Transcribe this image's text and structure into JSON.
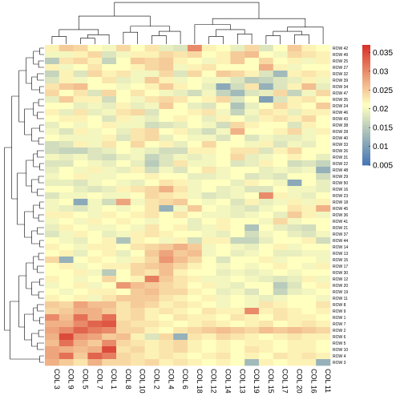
{
  "chart_data": {
    "type": "heatmap",
    "title": "",
    "columns": [
      "COL 3",
      "COL 9",
      "COL 5",
      "COL 7",
      "COL 1",
      "COL 8",
      "COL 10",
      "COL 2",
      "COL 4",
      "COL 6",
      "COL 18",
      "COL 12",
      "COL 14",
      "COL 13",
      "COL 19",
      "COL 15",
      "COL 17",
      "COL 20",
      "COL 16",
      "COL 11"
    ],
    "rows": [
      "ROW 42",
      "ROW 49",
      "ROW 25",
      "ROW 27",
      "ROW 32",
      "ROW 39",
      "ROW 34",
      "ROW 47",
      "ROW 35",
      "ROW 24",
      "ROW 46",
      "ROW 43",
      "ROW 38",
      "ROW 28",
      "ROW 40",
      "ROW 33",
      "ROW 26",
      "ROW 31",
      "ROW 22",
      "ROW 48",
      "ROW 29",
      "ROW 50",
      "ROW 16",
      "ROW 23",
      "ROW 18",
      "ROW 45",
      "ROW 36",
      "ROW 41",
      "ROW 21",
      "ROW 37",
      "ROW 44",
      "ROW 14",
      "ROW 13",
      "ROW 15",
      "ROW 17",
      "ROW 30",
      "ROW 12",
      "ROW 20",
      "ROW 19",
      "ROW 11",
      "ROW 8",
      "ROW 9",
      "ROW 1",
      "ROW 7",
      "ROW 2",
      "ROW 6",
      "ROW 5",
      "ROW 10",
      "ROW 4",
      "ROW 3"
    ],
    "values": [
      [
        0.022,
        0.025,
        0.024,
        0.021,
        0.02,
        0.024,
        0.021,
        0.023,
        0.019,
        0.018,
        0.03,
        0.022,
        0.021,
        0.019,
        0.024,
        0.018,
        0.021,
        0.025,
        0.022,
        0.021
      ],
      [
        0.02,
        0.02,
        0.022,
        0.024,
        0.018,
        0.02,
        0.022,
        0.022,
        0.024,
        0.023,
        0.024,
        0.021,
        0.022,
        0.025,
        0.026,
        0.021,
        0.02,
        0.024,
        0.023,
        0.022
      ],
      [
        0.015,
        0.023,
        0.024,
        0.022,
        0.016,
        0.021,
        0.025,
        0.024,
        0.025,
        0.022,
        0.021,
        0.02,
        0.022,
        0.025,
        0.021,
        0.024,
        0.021,
        0.022,
        0.02,
        0.022
      ],
      [
        0.022,
        0.02,
        0.021,
        0.023,
        0.021,
        0.021,
        0.022,
        0.024,
        0.025,
        0.02,
        0.022,
        0.023,
        0.021,
        0.021,
        0.021,
        0.027,
        0.022,
        0.02,
        0.021,
        0.021
      ],
      [
        0.016,
        0.022,
        0.018,
        0.024,
        0.022,
        0.023,
        0.02,
        0.02,
        0.024,
        0.018,
        0.024,
        0.021,
        0.025,
        0.024,
        0.022,
        0.018,
        0.013,
        0.022,
        0.023,
        0.022
      ],
      [
        0.018,
        0.022,
        0.02,
        0.021,
        0.023,
        0.019,
        0.02,
        0.025,
        0.022,
        0.02,
        0.021,
        0.02,
        0.02,
        0.018,
        0.015,
        0.016,
        0.018,
        0.019,
        0.022,
        0.02
      ],
      [
        0.023,
        0.025,
        0.026,
        0.021,
        0.021,
        0.02,
        0.021,
        0.022,
        0.025,
        0.022,
        0.021,
        0.019,
        0.011,
        0.017,
        0.023,
        0.012,
        0.018,
        0.022,
        0.026,
        0.019
      ],
      [
        0.024,
        0.021,
        0.023,
        0.018,
        0.024,
        0.021,
        0.023,
        0.021,
        0.02,
        0.019,
        0.017,
        0.02,
        0.016,
        0.013,
        0.018,
        0.019,
        0.024,
        0.016,
        0.02,
        0.024
      ],
      [
        0.019,
        0.025,
        0.022,
        0.022,
        0.017,
        0.021,
        0.02,
        0.023,
        0.024,
        0.023,
        0.021,
        0.022,
        0.024,
        0.018,
        0.021,
        0.01,
        0.018,
        0.022,
        0.023,
        0.021
      ],
      [
        0.021,
        0.021,
        0.019,
        0.02,
        0.019,
        0.022,
        0.019,
        0.02,
        0.025,
        0.021,
        0.019,
        0.018,
        0.021,
        0.014,
        0.019,
        0.021,
        0.024,
        0.022,
        0.021,
        0.025
      ],
      [
        0.022,
        0.019,
        0.023,
        0.019,
        0.02,
        0.023,
        0.024,
        0.018,
        0.021,
        0.021,
        0.022,
        0.023,
        0.02,
        0.016,
        0.02,
        0.023,
        0.022,
        0.019,
        0.022,
        0.022
      ],
      [
        0.021,
        0.022,
        0.022,
        0.021,
        0.018,
        0.022,
        0.02,
        0.019,
        0.021,
        0.022,
        0.021,
        0.019,
        0.022,
        0.021,
        0.019,
        0.022,
        0.023,
        0.022,
        0.024,
        0.021
      ],
      [
        0.019,
        0.021,
        0.02,
        0.021,
        0.022,
        0.02,
        0.02,
        0.017,
        0.018,
        0.019,
        0.021,
        0.02,
        0.017,
        0.024,
        0.022,
        0.021,
        0.021,
        0.018,
        0.022,
        0.021
      ],
      [
        0.02,
        0.018,
        0.022,
        0.02,
        0.021,
        0.019,
        0.023,
        0.024,
        0.021,
        0.022,
        0.019,
        0.017,
        0.02,
        0.027,
        0.021,
        0.021,
        0.022,
        0.024,
        0.02,
        0.022
      ],
      [
        0.021,
        0.02,
        0.02,
        0.02,
        0.022,
        0.018,
        0.023,
        0.024,
        0.019,
        0.021,
        0.02,
        0.02,
        0.018,
        0.021,
        0.018,
        0.02,
        0.019,
        0.019,
        0.02,
        0.021
      ],
      [
        0.017,
        0.018,
        0.022,
        0.02,
        0.023,
        0.021,
        0.024,
        0.021,
        0.022,
        0.019,
        0.021,
        0.024,
        0.021,
        0.021,
        0.02,
        0.022,
        0.018,
        0.02,
        0.019,
        0.021
      ],
      [
        0.017,
        0.016,
        0.016,
        0.018,
        0.019,
        0.021,
        0.02,
        0.019,
        0.017,
        0.017,
        0.022,
        0.022,
        0.021,
        0.023,
        0.023,
        0.018,
        0.022,
        0.024,
        0.021,
        0.021
      ],
      [
        0.02,
        0.019,
        0.02,
        0.018,
        0.017,
        0.019,
        0.02,
        0.016,
        0.018,
        0.02,
        0.019,
        0.02,
        0.021,
        0.024,
        0.019,
        0.02,
        0.021,
        0.022,
        0.021,
        0.019
      ],
      [
        0.018,
        0.018,
        0.021,
        0.02,
        0.019,
        0.021,
        0.019,
        0.015,
        0.018,
        0.023,
        0.02,
        0.02,
        0.021,
        0.018,
        0.019,
        0.022,
        0.021,
        0.017,
        0.018,
        0.016
      ],
      [
        0.019,
        0.021,
        0.02,
        0.022,
        0.02,
        0.019,
        0.022,
        0.017,
        0.02,
        0.018,
        0.021,
        0.023,
        0.02,
        0.021,
        0.021,
        0.019,
        0.02,
        0.019,
        0.02,
        0.012
      ],
      [
        0.02,
        0.021,
        0.022,
        0.02,
        0.02,
        0.021,
        0.021,
        0.022,
        0.021,
        0.021,
        0.019,
        0.019,
        0.02,
        0.021,
        0.018,
        0.019,
        0.018,
        0.021,
        0.021,
        0.017
      ],
      [
        0.019,
        0.019,
        0.018,
        0.02,
        0.021,
        0.02,
        0.019,
        0.021,
        0.023,
        0.022,
        0.02,
        0.021,
        0.021,
        0.019,
        0.022,
        0.021,
        0.02,
        0.011,
        0.021,
        0.019
      ],
      [
        0.021,
        0.021,
        0.019,
        0.018,
        0.019,
        0.022,
        0.023,
        0.024,
        0.027,
        0.023,
        0.02,
        0.021,
        0.019,
        0.02,
        0.018,
        0.018,
        0.021,
        0.02,
        0.02,
        0.019
      ],
      [
        0.018,
        0.02,
        0.02,
        0.021,
        0.02,
        0.02,
        0.021,
        0.024,
        0.023,
        0.022,
        0.02,
        0.018,
        0.019,
        0.02,
        0.021,
        0.03,
        0.022,
        0.02,
        0.019,
        0.021
      ],
      [
        0.02,
        0.021,
        0.011,
        0.02,
        0.017,
        0.028,
        0.02,
        0.023,
        0.024,
        0.025,
        0.021,
        0.02,
        0.021,
        0.018,
        0.022,
        0.019,
        0.02,
        0.022,
        0.02,
        0.022
      ],
      [
        0.02,
        0.019,
        0.018,
        0.02,
        0.021,
        0.02,
        0.021,
        0.023,
        0.012,
        0.02,
        0.025,
        0.021,
        0.02,
        0.019,
        0.018,
        0.02,
        0.021,
        0.023,
        0.022,
        0.027
      ],
      [
        0.022,
        0.022,
        0.021,
        0.02,
        0.022,
        0.021,
        0.022,
        0.023,
        0.021,
        0.023,
        0.021,
        0.02,
        0.02,
        0.019,
        0.02,
        0.021,
        0.019,
        0.025,
        0.022,
        0.02
      ],
      [
        0.02,
        0.021,
        0.02,
        0.022,
        0.021,
        0.022,
        0.021,
        0.02,
        0.021,
        0.021,
        0.019,
        0.021,
        0.022,
        0.021,
        0.021,
        0.02,
        0.024,
        0.02,
        0.021,
        0.021
      ],
      [
        0.019,
        0.022,
        0.021,
        0.02,
        0.02,
        0.021,
        0.02,
        0.023,
        0.021,
        0.022,
        0.019,
        0.02,
        0.022,
        0.021,
        0.014,
        0.021,
        0.019,
        0.018,
        0.017,
        0.021
      ],
      [
        0.018,
        0.02,
        0.022,
        0.021,
        0.019,
        0.02,
        0.022,
        0.023,
        0.022,
        0.021,
        0.021,
        0.02,
        0.019,
        0.021,
        0.017,
        0.02,
        0.021,
        0.019,
        0.018,
        0.02
      ],
      [
        0.021,
        0.02,
        0.019,
        0.021,
        0.022,
        0.014,
        0.022,
        0.021,
        0.02,
        0.022,
        0.017,
        0.022,
        0.022,
        0.016,
        0.016,
        0.019,
        0.021,
        0.021,
        0.022,
        0.017
      ],
      [
        0.022,
        0.021,
        0.02,
        0.022,
        0.022,
        0.021,
        0.023,
        0.024,
        0.025,
        0.027,
        0.025,
        0.02,
        0.021,
        0.02,
        0.019,
        0.021,
        0.022,
        0.02,
        0.021,
        0.021
      ],
      [
        0.021,
        0.022,
        0.019,
        0.021,
        0.022,
        0.019,
        0.021,
        0.025,
        0.028,
        0.025,
        0.026,
        0.02,
        0.021,
        0.019,
        0.02,
        0.021,
        0.019,
        0.019,
        0.02,
        0.02
      ],
      [
        0.024,
        0.012,
        0.021,
        0.022,
        0.021,
        0.02,
        0.022,
        0.024,
        0.029,
        0.026,
        0.024,
        0.021,
        0.018,
        0.021,
        0.021,
        0.022,
        0.02,
        0.021,
        0.021,
        0.02
      ],
      [
        0.021,
        0.022,
        0.02,
        0.021,
        0.022,
        0.022,
        0.024,
        0.025,
        0.026,
        0.024,
        0.022,
        0.021,
        0.02,
        0.021,
        0.02,
        0.021,
        0.022,
        0.021,
        0.02,
        0.022
      ],
      [
        0.021,
        0.021,
        0.022,
        0.02,
        0.015,
        0.021,
        0.024,
        0.023,
        0.026,
        0.022,
        0.021,
        0.021,
        0.019,
        0.02,
        0.019,
        0.02,
        0.021,
        0.02,
        0.021,
        0.021
      ],
      [
        0.022,
        0.021,
        0.02,
        0.021,
        0.024,
        0.021,
        0.022,
        0.031,
        0.025,
        0.023,
        0.022,
        0.02,
        0.02,
        0.021,
        0.02,
        0.019,
        0.018,
        0.019,
        0.022,
        0.02
      ],
      [
        0.02,
        0.021,
        0.022,
        0.02,
        0.021,
        0.029,
        0.026,
        0.025,
        0.024,
        0.023,
        0.021,
        0.022,
        0.02,
        0.019,
        0.021,
        0.021,
        0.015,
        0.018,
        0.021,
        0.022
      ],
      [
        0.021,
        0.02,
        0.021,
        0.022,
        0.022,
        0.021,
        0.025,
        0.026,
        0.024,
        0.024,
        0.022,
        0.021,
        0.019,
        0.02,
        0.018,
        0.021,
        0.016,
        0.019,
        0.02,
        0.021
      ],
      [
        0.022,
        0.021,
        0.022,
        0.02,
        0.023,
        0.025,
        0.025,
        0.025,
        0.023,
        0.022,
        0.021,
        0.022,
        0.02,
        0.021,
        0.02,
        0.019,
        0.02,
        0.021,
        0.021,
        0.02
      ],
      [
        0.025,
        0.024,
        0.028,
        0.026,
        0.026,
        0.023,
        0.025,
        0.024,
        0.022,
        0.023,
        0.022,
        0.021,
        0.02,
        0.021,
        0.02,
        0.023,
        0.022,
        0.021,
        0.021,
        0.023
      ],
      [
        0.024,
        0.025,
        0.027,
        0.027,
        0.025,
        0.023,
        0.024,
        0.022,
        0.023,
        0.022,
        0.021,
        0.023,
        0.022,
        0.022,
        0.03,
        0.022,
        0.023,
        0.022,
        0.021,
        0.022
      ],
      [
        0.03,
        0.026,
        0.032,
        0.027,
        0.032,
        0.023,
        0.024,
        0.022,
        0.021,
        0.023,
        0.022,
        0.022,
        0.021,
        0.023,
        0.022,
        0.021,
        0.023,
        0.022,
        0.022,
        0.021
      ],
      [
        0.027,
        0.027,
        0.03,
        0.033,
        0.034,
        0.024,
        0.023,
        0.023,
        0.022,
        0.021,
        0.022,
        0.023,
        0.022,
        0.021,
        0.022,
        0.023,
        0.021,
        0.022,
        0.023,
        0.022
      ],
      [
        0.028,
        0.03,
        0.033,
        0.031,
        0.03,
        0.024,
        0.024,
        0.022,
        0.021,
        0.023,
        0.024,
        0.025,
        0.026,
        0.025,
        0.024,
        0.026,
        0.025,
        0.026,
        0.025,
        0.024
      ],
      [
        0.027,
        0.035,
        0.029,
        0.028,
        0.025,
        0.026,
        0.022,
        0.018,
        0.024,
        0.012,
        0.023,
        0.022,
        0.024,
        0.023,
        0.022,
        0.021,
        0.022,
        0.023,
        0.022,
        0.022
      ],
      [
        0.026,
        0.032,
        0.027,
        0.025,
        0.03,
        0.024,
        0.023,
        0.022,
        0.023,
        0.024,
        0.022,
        0.021,
        0.022,
        0.021,
        0.022,
        0.022,
        0.021,
        0.022,
        0.022,
        0.021
      ],
      [
        0.028,
        0.027,
        0.026,
        0.027,
        0.035,
        0.023,
        0.024,
        0.022,
        0.023,
        0.024,
        0.022,
        0.021,
        0.022,
        0.021,
        0.023,
        0.022,
        0.021,
        0.022,
        0.022,
        0.021
      ],
      [
        0.028,
        0.032,
        0.025,
        0.033,
        0.031,
        0.024,
        0.023,
        0.022,
        0.023,
        0.022,
        0.021,
        0.022,
        0.023,
        0.021,
        0.022,
        0.021,
        0.023,
        0.022,
        0.023,
        0.022
      ],
      [
        0.027,
        0.025,
        0.023,
        0.027,
        0.024,
        0.024,
        0.023,
        0.024,
        0.022,
        0.023,
        0.022,
        0.021,
        0.022,
        0.021,
        0.013,
        0.022,
        0.021,
        0.022,
        0.022,
        0.012
      ]
    ],
    "zlim": [
      0.005,
      0.037
    ],
    "legend_ticks": [
      "0.035",
      "0.03",
      "0.025",
      "0.02",
      "0.015",
      "0.01",
      "0.005"
    ],
    "legend_placement": "top-right",
    "colors": {
      "low": "#4575b4",
      "mid": "#ffffbf",
      "high": "#d73027"
    }
  }
}
